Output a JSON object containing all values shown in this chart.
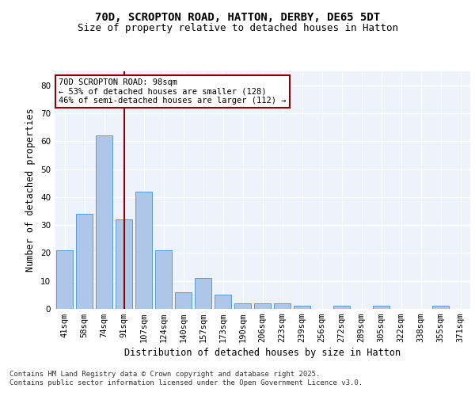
{
  "title1": "70D, SCROPTON ROAD, HATTON, DERBY, DE65 5DT",
  "title2": "Size of property relative to detached houses in Hatton",
  "xlabel": "Distribution of detached houses by size in Hatton",
  "ylabel": "Number of detached properties",
  "categories": [
    "41sqm",
    "58sqm",
    "74sqm",
    "91sqm",
    "107sqm",
    "124sqm",
    "140sqm",
    "157sqm",
    "173sqm",
    "190sqm",
    "206sqm",
    "223sqm",
    "239sqm",
    "256sqm",
    "272sqm",
    "289sqm",
    "305sqm",
    "322sqm",
    "338sqm",
    "355sqm",
    "371sqm"
  ],
  "values": [
    21,
    34,
    62,
    32,
    42,
    21,
    6,
    11,
    5,
    2,
    2,
    2,
    1,
    0,
    1,
    0,
    1,
    0,
    0,
    1,
    0
  ],
  "bar_color": "#aec6e8",
  "bar_edge_color": "#5b9bd5",
  "vline_color": "#8b0000",
  "annotation_text": "70D SCROPTON ROAD: 98sqm\n← 53% of detached houses are smaller (128)\n46% of semi-detached houses are larger (112) →",
  "annotation_box_color": "#ffffff",
  "annotation_box_edge": "#8b0000",
  "ylim": [
    0,
    85
  ],
  "yticks": [
    0,
    10,
    20,
    30,
    40,
    50,
    60,
    70,
    80
  ],
  "background_color": "#eef2fa",
  "footer_text": "Contains HM Land Registry data © Crown copyright and database right 2025.\nContains public sector information licensed under the Open Government Licence v3.0.",
  "title1_fontsize": 10,
  "title2_fontsize": 9,
  "xlabel_fontsize": 8.5,
  "ylabel_fontsize": 8.5,
  "tick_fontsize": 7.5,
  "annotation_fontsize": 7.5,
  "footer_fontsize": 6.5
}
